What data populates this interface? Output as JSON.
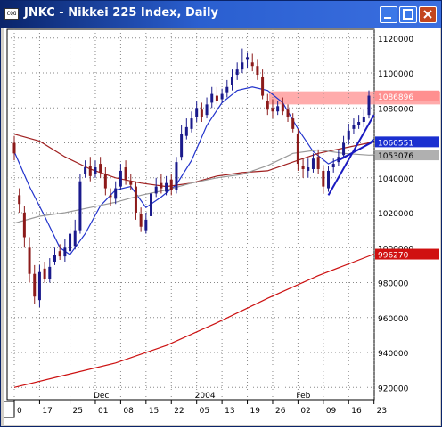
{
  "window": {
    "title": "JNKC - Nikkei 225 Index, Daily",
    "icon_label": "CQG"
  },
  "chart_data": {
    "type": "candlestick",
    "title": "JNKC - Nikkei 225 Index, Daily",
    "ylim": [
      9130,
      11250
    ],
    "y_ticks": [
      9200,
      9400,
      9600,
      9800,
      10000,
      10200,
      10400,
      10600,
      10800,
      11000,
      11200
    ],
    "y_tick_labels": [
      "920000",
      "940000",
      "960000",
      "980000",
      "1000000",
      "1020000",
      "1040000",
      "1060000",
      "1080000",
      "1100000",
      "1120000"
    ],
    "x_tick_labels": [
      {
        "i": 0,
        "label": "0"
      },
      {
        "i": 5,
        "label": "17"
      },
      {
        "i": 11,
        "label": "25"
      },
      {
        "i": 16,
        "label": "01"
      },
      {
        "i": 21,
        "label": "08"
      },
      {
        "i": 26,
        "label": "15"
      },
      {
        "i": 31,
        "label": "22"
      },
      {
        "i": 36,
        "label": "05"
      },
      {
        "i": 41,
        "label": "13"
      },
      {
        "i": 46,
        "label": "19"
      },
      {
        "i": 51,
        "label": "26"
      },
      {
        "i": 56,
        "label": "02"
      },
      {
        "i": 61,
        "label": "09"
      },
      {
        "i": 66,
        "label": "16"
      },
      {
        "i": 71,
        "label": "23"
      }
    ],
    "x_secondary_labels": [
      {
        "i": 16,
        "label": "Dec"
      },
      {
        "i": 36,
        "label": "2004"
      },
      {
        "i": 56,
        "label": "Feb"
      }
    ],
    "value_tags": [
      {
        "value": 10869,
        "label": "1086896",
        "color": "#ff9090",
        "text_color": "#ffffff"
      },
      {
        "value": 10606,
        "label": "1060551",
        "color": "#1a2fd0",
        "text_color": "#ffffff"
      },
      {
        "value": 10531,
        "label": "1053076",
        "color": "#b0b0b0",
        "text_color": "#000000"
      },
      {
        "value": 9963,
        "label": "996270",
        "color": "#d01010",
        "text_color": "#ffffff"
      }
    ],
    "resistance_zone": {
      "low": 10820,
      "high": 10895,
      "color": "#ff9c9c"
    },
    "candles": {
      "up_color": "#1a1a8c",
      "down_color": "#8c1a1a",
      "open": [
        10600,
        10300,
        10200,
        10000,
        9850,
        9700,
        9880,
        9820,
        9920,
        9980,
        9950,
        9980,
        10010,
        10100,
        10420,
        10470,
        10420,
        10480,
        10420,
        10300,
        10280,
        10350,
        10460,
        10380,
        10350,
        10190,
        10100,
        10180,
        10310,
        10370,
        10320,
        10390,
        10330,
        10520,
        10640,
        10680,
        10750,
        10790,
        10760,
        10830,
        10870,
        10850,
        10890,
        10930,
        10990,
        11020,
        11080,
        11060,
        11040,
        10980,
        10840,
        10800,
        10780,
        10820,
        10790,
        10740,
        10650,
        10470,
        10440,
        10450,
        10520,
        10440,
        10340,
        10460,
        10490,
        10530,
        10620,
        10680,
        10700,
        10720,
        10760
      ],
      "close": [
        10540,
        10250,
        10060,
        9850,
        9720,
        9860,
        9820,
        9890,
        9960,
        9950,
        10000,
        10080,
        10100,
        10380,
        10460,
        10410,
        10460,
        10430,
        10340,
        10290,
        10340,
        10440,
        10390,
        10360,
        10200,
        10120,
        10160,
        10310,
        10350,
        10340,
        10370,
        10330,
        10490,
        10650,
        10690,
        10740,
        10800,
        10750,
        10820,
        10880,
        10840,
        10880,
        10920,
        10980,
        11020,
        11060,
        11090,
        11040,
        10990,
        10870,
        10790,
        10780,
        10810,
        10780,
        10750,
        10680,
        10480,
        10450,
        10460,
        10510,
        10450,
        10350,
        10440,
        10480,
        10520,
        10600,
        10670,
        10700,
        10720,
        10750,
        10870
      ],
      "high": [
        10640,
        10340,
        10240,
        10060,
        9900,
        9900,
        9920,
        9940,
        10000,
        10020,
        10050,
        10120,
        10160,
        10420,
        10500,
        10520,
        10500,
        10520,
        10460,
        10340,
        10380,
        10480,
        10500,
        10420,
        10380,
        10230,
        10200,
        10340,
        10400,
        10420,
        10410,
        10420,
        10520,
        10700,
        10740,
        10780,
        10840,
        10830,
        10860,
        10920,
        10920,
        10910,
        10960,
        11020,
        11060,
        11140,
        11120,
        11110,
        11080,
        11020,
        10880,
        10850,
        10840,
        10860,
        10820,
        10770,
        10680,
        10510,
        10510,
        10540,
        10560,
        10470,
        10470,
        10510,
        10560,
        10640,
        10710,
        10740,
        10760,
        10790,
        10900
      ],
      "low": [
        10500,
        10200,
        10000,
        9800,
        9680,
        9660,
        9800,
        9800,
        9900,
        9930,
        9920,
        9960,
        9990,
        10080,
        10400,
        10380,
        10400,
        10400,
        10300,
        10240,
        10250,
        10330,
        10360,
        10330,
        10160,
        10090,
        10080,
        10160,
        10290,
        10310,
        10300,
        10300,
        10310,
        10500,
        10620,
        10660,
        10720,
        10720,
        10740,
        10800,
        10820,
        10830,
        10860,
        10900,
        10960,
        11000,
        11030,
        11010,
        10960,
        10850,
        10760,
        10740,
        10760,
        10760,
        10720,
        10660,
        10440,
        10400,
        10400,
        10430,
        10420,
        10310,
        10320,
        10430,
        10470,
        10510,
        10590,
        10650,
        10680,
        10690,
        10740
      ]
    },
    "series": [
      {
        "name": "",
        "color": "#2233cc",
        "x": [
          0,
          3,
          6,
          9,
          11,
          14,
          17,
          20,
          23,
          26,
          29,
          32,
          35,
          38,
          41,
          44,
          47,
          50,
          53,
          56,
          59,
          62,
          65,
          68,
          71
        ],
        "values": [
          10550,
          10350,
          10180,
          10000,
          9960,
          10080,
          10240,
          10330,
          10350,
          10230,
          10290,
          10360,
          10500,
          10700,
          10830,
          10900,
          10920,
          10900,
          10830,
          10680,
          10550,
          10480,
          10520,
          10560,
          10620
        ]
      },
      {
        "name": "",
        "color": "#a02020",
        "x": [
          0,
          5,
          10,
          15,
          20,
          25,
          30,
          35,
          40,
          45,
          50,
          55,
          60,
          65,
          70,
          71
        ],
        "values": [
          10650,
          10610,
          10520,
          10450,
          10400,
          10370,
          10350,
          10370,
          10410,
          10430,
          10440,
          10490,
          10540,
          10570,
          10600,
          10605
        ]
      },
      {
        "name": "",
        "color": "#999999",
        "x": [
          0,
          5,
          10,
          15,
          20,
          25,
          30,
          35,
          40,
          45,
          50,
          55,
          60,
          65,
          70,
          71
        ],
        "values": [
          10140,
          10180,
          10200,
          10230,
          10260,
          10300,
          10330,
          10370,
          10400,
          10420,
          10470,
          10540,
          10560,
          10540,
          10530,
          10531
        ]
      },
      {
        "name": "",
        "color": "#cc1111",
        "x": [
          0,
          10,
          20,
          30,
          40,
          50,
          60,
          71
        ],
        "values": [
          9200,
          9270,
          9340,
          9440,
          9570,
          9710,
          9840,
          9963
        ]
      }
    ],
    "trendlines": [
      {
        "color": "#1a1ac0",
        "points": [
          [
            62,
            10300
          ],
          [
            71,
            10760
          ]
        ]
      },
      {
        "color": "#1a1ac0",
        "points": [
          [
            64,
            10500
          ],
          [
            71,
            10610
          ]
        ]
      }
    ],
    "grid": true
  }
}
